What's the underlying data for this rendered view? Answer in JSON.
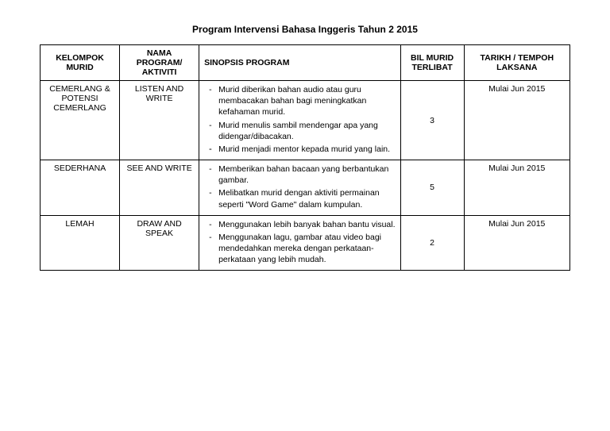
{
  "title": "Program Intervensi Bahasa Inggeris Tahun 2 2015",
  "headers": {
    "kelompok": "KELOMPOK MURID",
    "nama": "NAMA PROGRAM/ AKTIVITI",
    "sinopsis": "SINOPSIS PROGRAM",
    "bil": "BIL MURID TERLIBAT",
    "tarikh": "TARIKH / TEMPOH LAKSANA"
  },
  "rows": [
    {
      "kelompok": "CEMERLANG & POTENSI CEMERLANG",
      "nama": "LISTEN AND WRITE",
      "sinopsis": [
        "Murid diberikan bahan audio atau guru membacakan bahan bagi meningkatkan kefahaman murid.",
        "Murid menulis sambil mendengar apa yang didengar/dibacakan.",
        "",
        "Murid menjadi mentor kepada murid yang lain."
      ],
      "bil": "3",
      "tarikh": "Mulai Jun 2015"
    },
    {
      "kelompok": "SEDERHANA",
      "nama": "SEE AND WRITE",
      "sinopsis": [
        "Memberikan bahan bacaan yang berbantukan gambar.",
        "Melibatkan murid dengan aktiviti permainan seperti \"Word Game\" dalam kumpulan."
      ],
      "bil": "5",
      "tarikh": "Mulai Jun 2015"
    },
    {
      "kelompok": "LEMAH",
      "nama": "DRAW AND SPEAK",
      "sinopsis": [
        "Menggunakan lebih banyak bahan bantu visual.",
        "Menggunakan lagu, gambar atau video bagi mendedahkan mereka dengan perkataan-perkataan yang lebih mudah."
      ],
      "bil": "2",
      "tarikh": "Mulai Jun 2015"
    }
  ]
}
